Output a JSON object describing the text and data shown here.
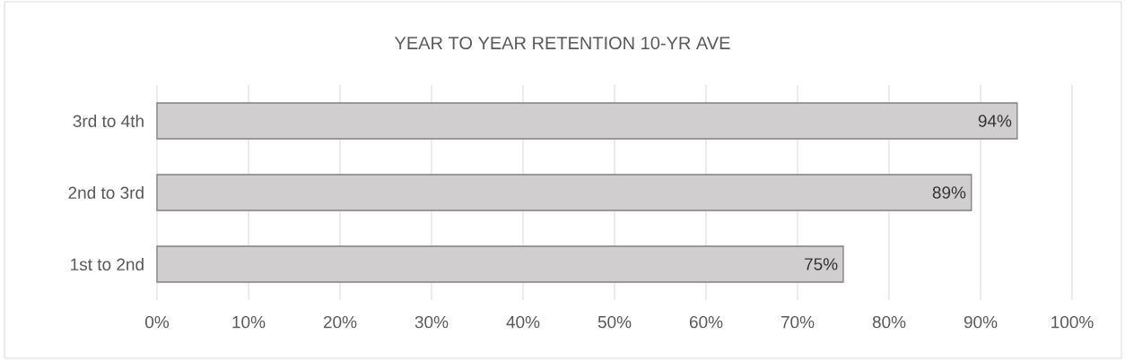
{
  "chart_data": {
    "type": "bar",
    "orientation": "horizontal",
    "title": "YEAR TO YEAR RETENTION 10-YR AVE",
    "categories": [
      "3rd to 4th",
      "2nd to 3rd",
      "1st to 2nd"
    ],
    "values": [
      94,
      89,
      75
    ],
    "value_labels": [
      "94%",
      "89%",
      "75%"
    ],
    "color": "#d0cece",
    "xlim": [
      0,
      100
    ],
    "xticks": [
      {
        "value": 0,
        "label": "0%"
      },
      {
        "value": 10,
        "label": "10%"
      },
      {
        "value": 20,
        "label": "20%"
      },
      {
        "value": 30,
        "label": "30%"
      },
      {
        "value": 40,
        "label": "40%"
      },
      {
        "value": 50,
        "label": "50%"
      },
      {
        "value": 60,
        "label": "60%"
      },
      {
        "value": 70,
        "label": "70%"
      },
      {
        "value": 80,
        "label": "80%"
      },
      {
        "value": 90,
        "label": "90%"
      },
      {
        "value": 100,
        "label": "100%"
      }
    ],
    "grid": "x"
  }
}
